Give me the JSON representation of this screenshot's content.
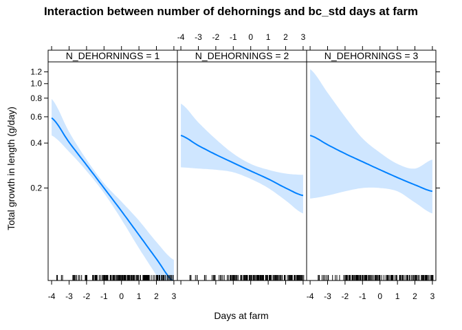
{
  "chart_data": {
    "type": "line",
    "title": "Interaction between number of dehornings and bc_std days at farm",
    "xlabel": "Days at farm",
    "ylabel": "Total growth in length (g/day)",
    "xlim": [
      -4.2,
      3.2
    ],
    "ylim": [
      0.048,
      1.4
    ],
    "y_scale": "log",
    "x_ticks": [
      -4,
      -3,
      -2,
      -1,
      0,
      1,
      2,
      3
    ],
    "y_ticks": [
      0.2,
      0.4,
      0.6,
      0.8,
      1.0,
      1.2
    ],
    "y_tick_labels": [
      "0.2",
      "0.4",
      "0.6",
      "0.8",
      "1.0",
      "1.2"
    ],
    "x_tick_labels": [
      "-4",
      "-3",
      "-2",
      "-1",
      "0",
      "1",
      "2",
      "3"
    ],
    "line_color": "#0080ff",
    "band_color": "#cfe6ff",
    "panels": [
      {
        "strip": "N_DEHORNINGS = 1",
        "x": [
          -4,
          -3,
          -2,
          -1,
          0,
          1,
          2,
          3
        ],
        "fit": [
          0.59,
          0.405,
          0.285,
          0.2,
          0.14,
          0.097,
          0.067,
          0.047
        ],
        "lower": [
          0.45,
          0.35,
          0.26,
          0.185,
          0.123,
          0.079,
          0.052,
          0.034
        ],
        "upper": [
          0.79,
          0.475,
          0.31,
          0.215,
          0.162,
          0.121,
          0.087,
          0.066
        ]
      },
      {
        "strip": "N_DEHORNINGS = 2",
        "x": [
          -4,
          -3,
          -2,
          -1,
          0,
          1,
          2,
          3
        ],
        "fit": [
          0.45,
          0.385,
          0.335,
          0.295,
          0.26,
          0.23,
          0.2,
          0.178
        ],
        "lower": [
          0.275,
          0.27,
          0.265,
          0.255,
          0.23,
          0.2,
          0.165,
          0.135
        ],
        "upper": [
          0.735,
          0.55,
          0.425,
          0.34,
          0.29,
          0.265,
          0.25,
          0.245
        ]
      },
      {
        "strip": "N_DEHORNINGS = 3",
        "x": [
          -4,
          -3,
          -2,
          -1,
          0,
          1,
          2,
          3
        ],
        "fit": [
          0.45,
          0.39,
          0.34,
          0.3,
          0.265,
          0.235,
          0.21,
          0.19
        ],
        "lower": [
          0.17,
          0.178,
          0.19,
          0.2,
          0.2,
          0.19,
          0.16,
          0.135
        ],
        "upper": [
          1.25,
          0.87,
          0.6,
          0.43,
          0.345,
          0.29,
          0.27,
          0.31
        ]
      }
    ]
  }
}
